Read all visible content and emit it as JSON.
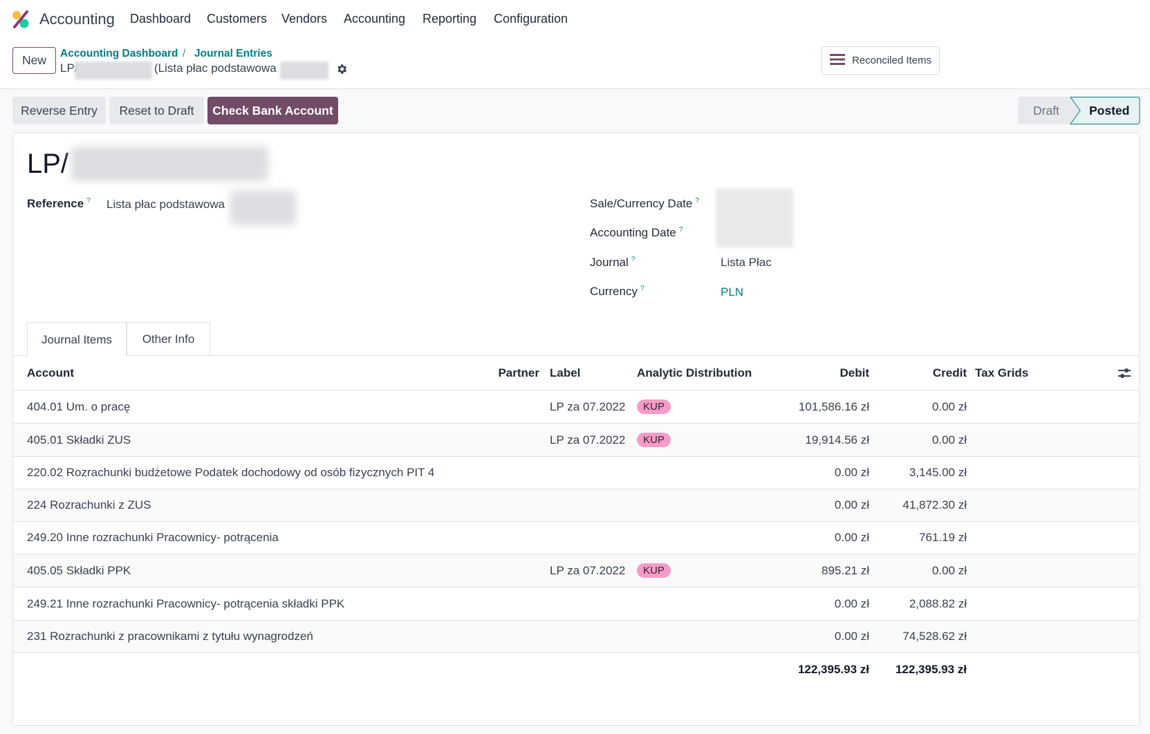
{
  "navbar": {
    "app_name": "Accounting",
    "menu": [
      "Dashboard",
      "Customers",
      "Vendors",
      "Accounting",
      "Reporting",
      "Configuration"
    ]
  },
  "control_panel": {
    "new_label": "New",
    "breadcrumb": [
      "Accounting Dashboard",
      "Journal Entries"
    ],
    "breadcrumb_sep": "/",
    "record_prefix": "LP/",
    "record_suffix": "(Lista płac podstawowa",
    "reconciled_label": "Reconciled Items"
  },
  "actions": {
    "reverse": "Reverse Entry",
    "reset": "Reset to Draft",
    "check_bank": "Check Bank Account"
  },
  "status": {
    "steps": [
      "Draft",
      "Posted"
    ],
    "current": "Posted"
  },
  "colors": {
    "brand": "#714b67",
    "link": "#017e84",
    "badge": "#f49cc8"
  },
  "form": {
    "title": "LP/",
    "reference_label": "Reference",
    "reference_value": "Lista płac podstawowa",
    "help": "?",
    "sale_date_label": "Sale/Currency Date",
    "accounting_date_label": "Accounting Date",
    "journal_label": "Journal",
    "journal_value": "Lista Płac",
    "currency_label": "Currency",
    "currency_value": "PLN"
  },
  "tabs": [
    "Journal Items",
    "Other Info"
  ],
  "table": {
    "headers": {
      "account": "Account",
      "partner": "Partner",
      "label": "Label",
      "analytic": "Analytic Distribution",
      "debit": "Debit",
      "credit": "Credit",
      "tax": "Tax Grids"
    },
    "rows": [
      {
        "account": "404.01 Um. o pracę",
        "label": "LP za 07.2022",
        "analytic": "KUP",
        "debit": "101,586.16 zł",
        "credit": "0.00 zł"
      },
      {
        "account": "405.01 Składki ZUS",
        "label": "LP za 07.2022",
        "analytic": "KUP",
        "debit": "19,914.56 zł",
        "credit": "0.00 zł"
      },
      {
        "account": "220.02 Rozrachunki budżetowe Podatek dochodowy od osób fizycznych PIT 4",
        "label": "",
        "analytic": "",
        "debit": "0.00 zł",
        "credit": "3,145.00 zł"
      },
      {
        "account": "224 Rozrachunki z ZUS",
        "label": "",
        "analytic": "",
        "debit": "0.00 zł",
        "credit": "41,872.30 zł"
      },
      {
        "account": "249.20 Inne rozrachunki Pracownicy- potrącenia",
        "label": "",
        "analytic": "",
        "debit": "0.00 zł",
        "credit": "761.19 zł"
      },
      {
        "account": "405.05 Składki PPK",
        "label": "LP za 07.2022",
        "analytic": "KUP",
        "debit": "895.21 zł",
        "credit": "0.00 zł"
      },
      {
        "account": "249.21 Inne rozrachunki Pracownicy- potrącenia składki PPK",
        "label": "",
        "analytic": "",
        "debit": "0.00 zł",
        "credit": "2,088.82 zł"
      },
      {
        "account": "231 Rozrachunki z pracownikami z tytułu wynagrodzeń",
        "label": "",
        "analytic": "",
        "debit": "0.00 zł",
        "credit": "74,528.62 zł"
      }
    ],
    "totals": {
      "debit": "122,395.93 zł",
      "credit": "122,395.93 zł"
    }
  }
}
